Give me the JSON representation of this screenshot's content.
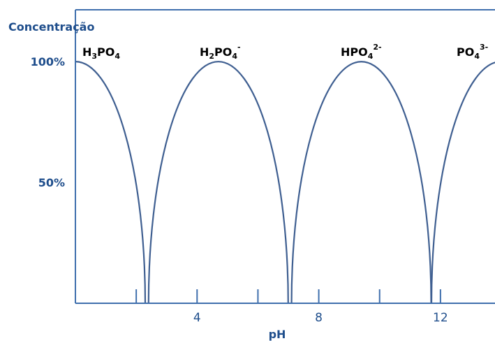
{
  "chart_data": {
    "type": "line",
    "title": "",
    "ylabel": "Concentração",
    "xlabel": "pH",
    "x_ticks": [
      4,
      8,
      12
    ],
    "minor_ticks": [
      2,
      6,
      10
    ],
    "y_ticks": [
      {
        "value": 100,
        "label": "100%"
      },
      {
        "value": 50,
        "label": "50%"
      }
    ],
    "xlim": [
      0,
      14
    ],
    "ylim": [
      0,
      100
    ],
    "species": [
      {
        "base": "H",
        "sub1": "3",
        "mid": "PO",
        "sub2": "4",
        "sup": "",
        "center_ph": 0,
        "peak": 100
      },
      {
        "base": "H",
        "sub1": "2",
        "mid": "PO",
        "sub2": "4",
        "sup": "-",
        "center_ph": 4.7,
        "peak": 100
      },
      {
        "base": "",
        "sub1": "",
        "mid": "HPO",
        "sub2": "4",
        "sup": "2-",
        "center_ph": 9.4,
        "peak": 100
      },
      {
        "base": "",
        "sub1": "",
        "mid": "PO",
        "sub2": "4",
        "sup": "3-",
        "center_ph": 14,
        "peak": 100
      }
    ],
    "colors": {
      "curve": "#3f5f91",
      "axis": "#3f6fad",
      "ytext": "#1f4e8c",
      "text": "#000000"
    }
  }
}
